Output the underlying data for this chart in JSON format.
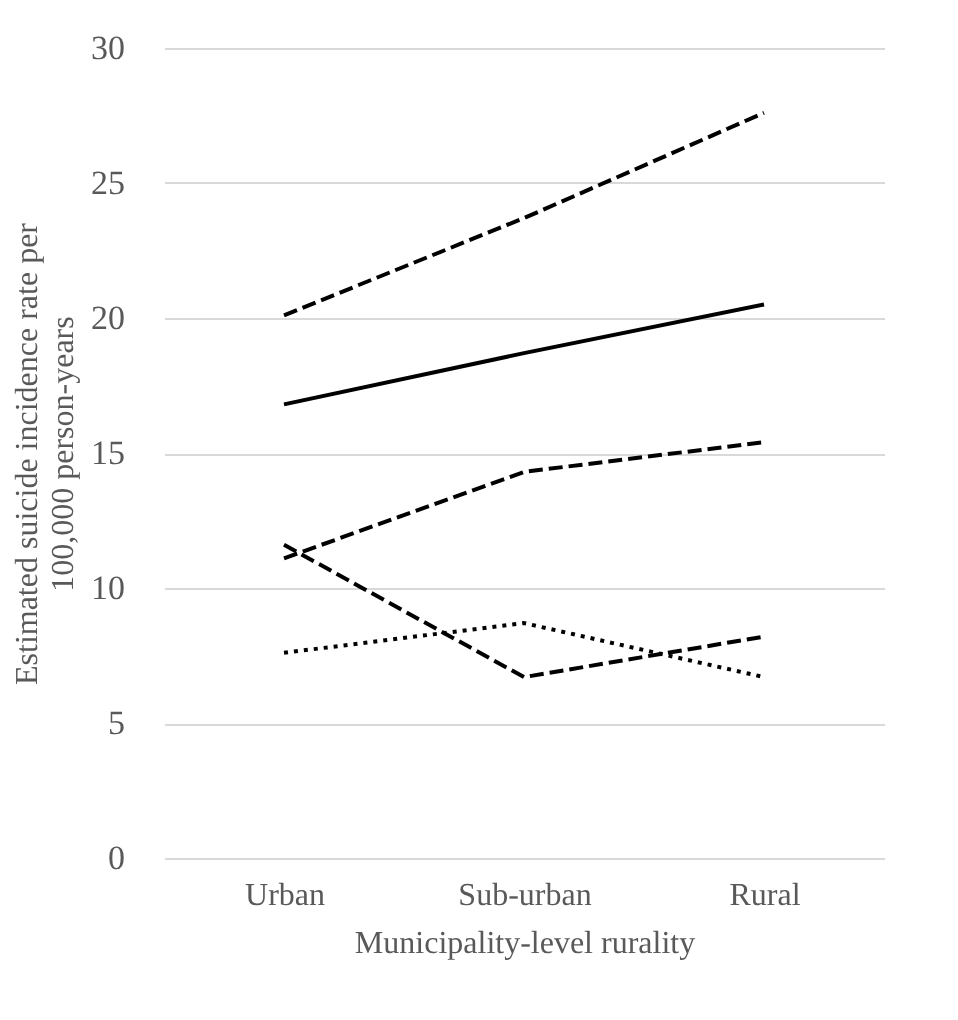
{
  "chart_data": {
    "type": "line",
    "xlabel": "Municipality-level rurality",
    "ylabel": "Estimated suicide incidence rate per 100,000 person-years",
    "categories": [
      "Urban",
      "Sub-urban",
      "Rural"
    ],
    "series": [
      {
        "color": "#000000",
        "line_style": "dashed",
        "values": [
          20.1,
          23.7,
          27.6
        ]
      },
      {
        "color": "#000000",
        "line_style": "solid",
        "values": [
          16.8,
          18.7,
          20.5
        ]
      },
      {
        "color": "#000000",
        "line_style": "dashed",
        "values": [
          11.1,
          14.3,
          15.4
        ]
      },
      {
        "color": "#000000",
        "line_style": "dashed",
        "values": [
          11.6,
          6.7,
          8.2
        ]
      },
      {
        "color": "#000000",
        "line_style": "dotted",
        "values": [
          7.6,
          8.7,
          6.7
        ]
      }
    ],
    "ylim": [
      0,
      30
    ],
    "yticks": [
      0,
      5,
      10,
      15,
      20,
      25,
      30
    ],
    "grid": "y",
    "marker": "none"
  }
}
